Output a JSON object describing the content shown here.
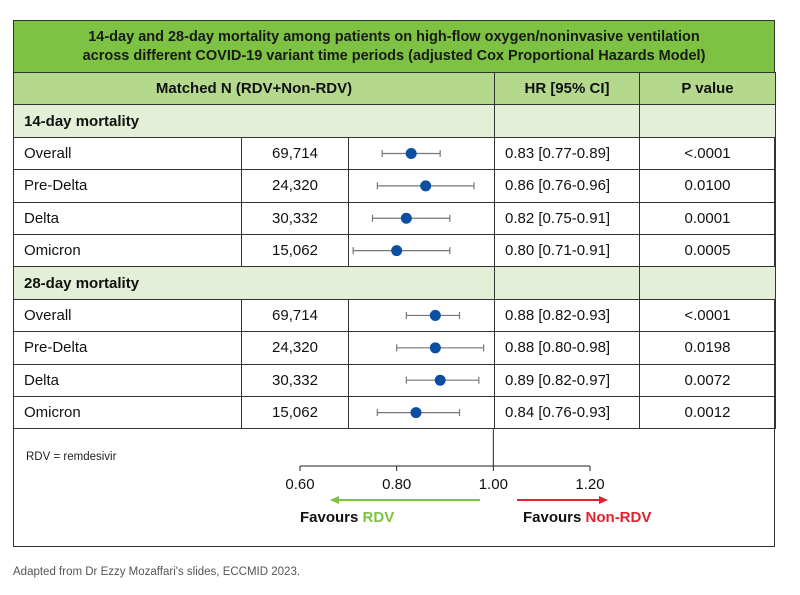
{
  "title": "14-day and 28-day mortality among patients on high-flow oxygen/noninvasive ventilation across different COVID-19 variant time periods (adjusted Cox Proportional Hazards Model)",
  "title_lines": [
    "14-day and 28-day mortality among patients on high-flow oxygen/noninvasive ventilation",
    "across different COVID-19 variant time periods (adjusted Cox Proportional Hazards Model)"
  ],
  "headers": {
    "matched_n": "Matched N (RDV+Non-RDV)",
    "hr": "HR [95% CI]",
    "p": "P value"
  },
  "sections": [
    {
      "label": "14-day mortality",
      "rows": [
        {
          "group": "Overall",
          "n": "69,714",
          "hr_text": "0.83 [0.77-0.89]",
          "p": "<.0001"
        },
        {
          "group": "Pre-Delta",
          "n": "24,320",
          "hr_text": "0.86 [0.76-0.96]",
          "p": "0.0100"
        },
        {
          "group": "Delta",
          "n": "30,332",
          "hr_text": "0.82 [0.75-0.91]",
          "p": "0.0001"
        },
        {
          "group": "Omicron",
          "n": "15,062",
          "hr_text": "0.80 [0.71-0.91]",
          "p": "0.0005"
        }
      ]
    },
    {
      "label": "28-day mortality",
      "rows": [
        {
          "group": "Overall",
          "n": "69,714",
          "hr_text": "0.88 [0.82-0.93]",
          "p": "<.0001"
        },
        {
          "group": "Pre-Delta",
          "n": "24,320",
          "hr_text": "0.88 [0.80-0.98]",
          "p": "0.0198"
        },
        {
          "group": "Delta",
          "n": "30,332",
          "hr_text": "0.89 [0.82-0.97]",
          "p": "0.0072"
        },
        {
          "group": "Omicron",
          "n": "15,062",
          "hr_text": "0.84 [0.76-0.93]",
          "p": "0.0012"
        }
      ]
    }
  ],
  "footnote": "RDV = remdesivir",
  "source": "Adapted from Dr Ezzy Mozaffari's slides, ECCMID 2023.",
  "legend": {
    "left_prefix": "Favours ",
    "left_highlight": "RDV",
    "right_prefix": "Favours ",
    "right_highlight": "Non-RDV"
  },
  "colors": {
    "title_band": "#7dc242",
    "header_band": "#b5d98c",
    "section_band": "#e3efd6",
    "point": "#0b4ea2",
    "whisker": "#777777",
    "favours_rdv": "#7dc242",
    "favours_non_rdv": "#e4202c"
  },
  "chart_data": {
    "type": "scatter",
    "subtype": "forest-plot",
    "title": "14-day and 28-day mortality among patients on high-flow oxygen/noninvasive ventilation across different COVID-19 variant time periods (adjusted Cox Proportional Hazards Model)",
    "xlabel": "HR [95% CI]",
    "xlim": [
      0.6,
      1.2
    ],
    "xticks": [
      "0.60",
      "0.80",
      "1.00",
      "1.20"
    ],
    "xtick_values": [
      0.6,
      0.8,
      1.0,
      1.2
    ],
    "reference_line": 1.0,
    "grid": false,
    "series": [
      {
        "name": "14-day mortality",
        "categories": [
          "Overall",
          "Pre-Delta",
          "Delta",
          "Omicron"
        ],
        "hr": [
          0.83,
          0.86,
          0.82,
          0.8
        ],
        "ci_low": [
          0.77,
          0.76,
          0.75,
          0.71
        ],
        "ci_high": [
          0.89,
          0.96,
          0.91,
          0.91
        ]
      },
      {
        "name": "28-day mortality",
        "categories": [
          "Overall",
          "Pre-Delta",
          "Delta",
          "Omicron"
        ],
        "hr": [
          0.88,
          0.88,
          0.89,
          0.84
        ],
        "ci_low": [
          0.82,
          0.8,
          0.82,
          0.76
        ],
        "ci_high": [
          0.93,
          0.98,
          0.97,
          0.93
        ]
      }
    ],
    "legend": [
      "Favours RDV",
      "Favours Non-RDV"
    ],
    "legend_position": "bottom"
  }
}
